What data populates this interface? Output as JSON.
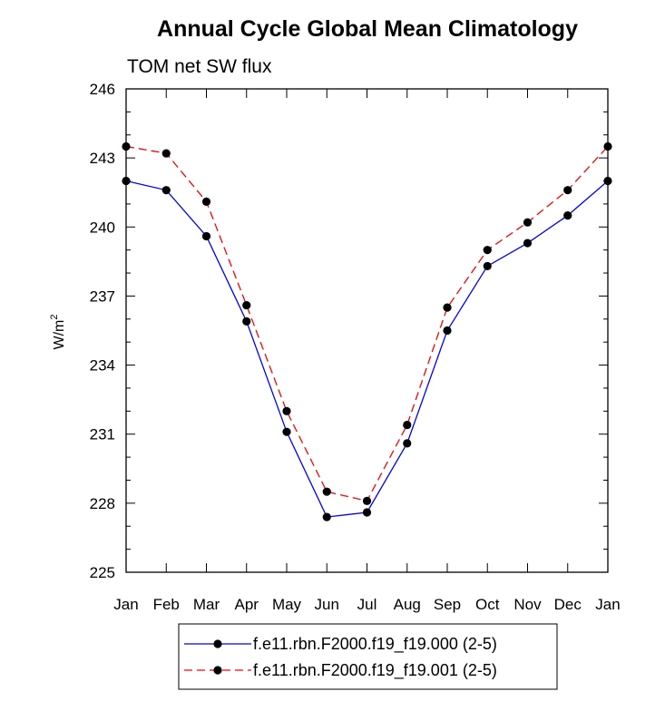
{
  "chart_data": {
    "type": "line",
    "title": "Annual Cycle Global Mean Climatology",
    "subtitle": "TOM net SW flux",
    "ylabel": "W/m",
    "ylabel_sup": "2",
    "xlabel": "",
    "categories": [
      "Jan",
      "Feb",
      "Mar",
      "Apr",
      "May",
      "Jun",
      "Jul",
      "Aug",
      "Sep",
      "Oct",
      "Nov",
      "Dec",
      "Jan"
    ],
    "ylim": [
      225,
      246
    ],
    "yticks": [
      225,
      228,
      231,
      234,
      237,
      240,
      243,
      246
    ],
    "series": [
      {
        "name": "f.e11.rbn.F2000.f19_f19.000 (2-5)",
        "color": "#0000ff",
        "style": "solid",
        "values": [
          242.0,
          241.6,
          239.6,
          235.9,
          231.1,
          227.4,
          227.6,
          230.6,
          235.5,
          238.3,
          239.3,
          240.5,
          242.0
        ]
      },
      {
        "name": "f.e11.rbn.F2000.f19_f19.001 (2-5)",
        "color": "#ff0000",
        "style": "dashed",
        "values": [
          243.5,
          243.2,
          241.1,
          236.6,
          232.0,
          228.5,
          228.1,
          231.4,
          236.5,
          239.0,
          240.2,
          241.6,
          243.5
        ]
      }
    ],
    "grid": false,
    "legend_position": "bottom-center",
    "marker_color": "#000000"
  }
}
